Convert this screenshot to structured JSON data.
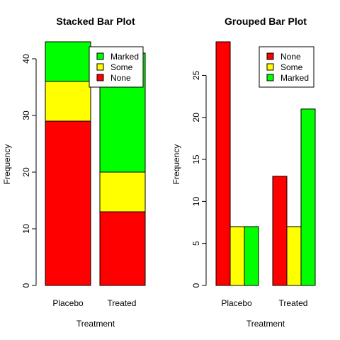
{
  "chart_data": [
    {
      "type": "bar",
      "title": "Stacked Bar Plot",
      "xlabel": "Treatment",
      "ylabel": "Frequency",
      "ylim": [
        0,
        43
      ],
      "yticks": [
        0,
        10,
        20,
        30,
        40
      ],
      "categories": [
        "Placebo",
        "Treated"
      ],
      "stacked": true,
      "series": [
        {
          "name": "None",
          "color": "#ff0000",
          "values": [
            29,
            13
          ]
        },
        {
          "name": "Some",
          "color": "#ffff00",
          "values": [
            7,
            7
          ]
        },
        {
          "name": "Marked",
          "color": "#00ff00",
          "values": [
            7,
            21
          ]
        }
      ],
      "legend_order": [
        "Marked",
        "Some",
        "None"
      ],
      "legend_position": "top-right"
    },
    {
      "type": "bar",
      "title": "Grouped Bar Plot",
      "xlabel": "Treatment",
      "ylabel": "Frequency",
      "ylim": [
        0,
        29
      ],
      "yticks": [
        0,
        5,
        10,
        15,
        20,
        25
      ],
      "categories": [
        "Placebo",
        "Treated"
      ],
      "stacked": false,
      "series": [
        {
          "name": "None",
          "color": "#ff0000",
          "values": [
            29,
            13
          ]
        },
        {
          "name": "Some",
          "color": "#ffff00",
          "values": [
            7,
            7
          ]
        },
        {
          "name": "Marked",
          "color": "#00ff00",
          "values": [
            7,
            21
          ]
        }
      ],
      "legend_order": [
        "None",
        "Some",
        "Marked"
      ],
      "legend_position": "top-right"
    }
  ]
}
